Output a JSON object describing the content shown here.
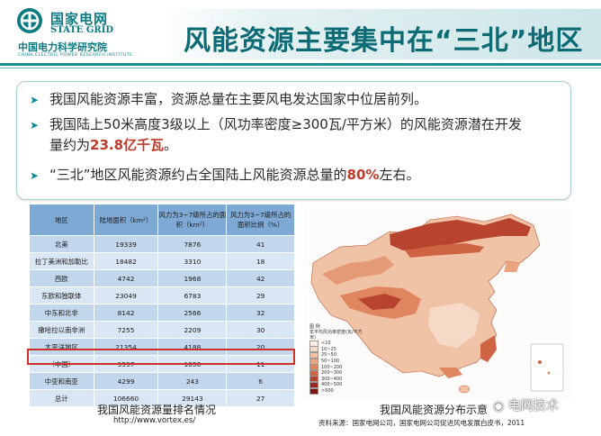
{
  "header": {
    "logo_cn": "国家电网",
    "logo_en": "STATE GRID",
    "institute_cn": "中国电力科学研究院",
    "institute_en": "CHINA ELECTRIC POWER RESEARCH INSTITUTE",
    "title": "风能资源主要集中在“三北”地区"
  },
  "bullets": [
    {
      "pre": "我国风能资源丰富，资源总量在主要风电发达国家中位居前列。",
      "hl": "",
      "post": "",
      "pre2": ""
    },
    {
      "pre": "我国陆上50米高度3级以上（风功率密度≥300瓦/平方米）的风能资源潜在开发",
      "pre2": "量约为",
      "hl": "23.8亿千瓦",
      "post": "。"
    },
    {
      "pre": "“三北”地区风能资源约占全国陆上风能资源总量的",
      "hl": "80%",
      "post": "左右。",
      "pre2": ""
    }
  ],
  "table": {
    "headers": [
      "地区",
      "陆地面积（km²）",
      "风力为3~7级所占的面积（km²）",
      "风力为3~7级所占的面积比例（%）"
    ],
    "rows": [
      [
        "北美",
        "19339",
        "7876",
        "41"
      ],
      [
        "拉丁美洲和加勒比",
        "18482",
        "3310",
        "18"
      ],
      [
        "西欧",
        "4742",
        "1968",
        "42"
      ],
      [
        "东欧和独联体",
        "23049",
        "6783",
        "29"
      ],
      [
        "中东和北非",
        "8142",
        "2566",
        "32"
      ],
      [
        "撒哈拉以南非洲",
        "7255",
        "2209",
        "30"
      ],
      [
        "太平洋地区",
        "21354",
        "4188",
        "20"
      ],
      [
        "（中国）",
        "9597",
        "1056",
        "11"
      ],
      [
        "中亚和南亚",
        "4299",
        "243",
        "6"
      ],
      [
        "总计",
        "106660",
        "29143",
        "27"
      ]
    ],
    "caption": "我国风能资源量排名情况",
    "url": "http://www.vortex.es/"
  },
  "map": {
    "caption": "我国风能资源分布示意",
    "source": "资料来源：国家电网公司，国家电网公司促进风电发展白皮书，2011",
    "legend_title": "图 例",
    "legend_subtitle": "年平均风功率密度(瓦/平方米)",
    "legend_items": [
      {
        "label": "<10",
        "color": "#fbeee6"
      },
      {
        "label": "10~25",
        "color": "#f7d9c7"
      },
      {
        "label": "25~50",
        "color": "#f2c0a3"
      },
      {
        "label": "50~100",
        "color": "#eaa47f"
      },
      {
        "label": "100~200",
        "color": "#df8660"
      },
      {
        "label": "200~300",
        "color": "#cf6444"
      },
      {
        "label": "300~400",
        "color": "#b8432e"
      },
      {
        "label": "400~500",
        "color": "#9b2a1e"
      },
      {
        "label": ">500",
        "color": "#7a1410"
      }
    ]
  },
  "watermark": "电网技术",
  "colors": {
    "accent": "#0c6b74",
    "highlight": "#c0392b",
    "table_header": "#7ea9d4",
    "redbox": "#d0302c"
  }
}
